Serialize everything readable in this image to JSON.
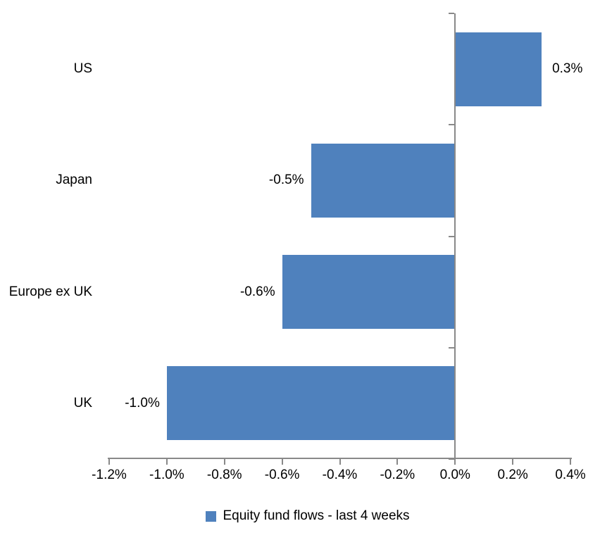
{
  "chart_data": {
    "type": "bar",
    "orientation": "horizontal",
    "categories": [
      "US",
      "Japan",
      "Europe ex UK",
      "UK"
    ],
    "values": [
      0.3,
      -0.5,
      -0.6,
      -1.0
    ],
    "data_labels": [
      "0.3%",
      "-0.5%",
      "-0.6%",
      "-1.0%"
    ],
    "title": "",
    "xlabel": "",
    "ylabel": "",
    "xlim": [
      -1.2,
      0.4
    ],
    "x_tick_step": 0.2,
    "x_tick_labels": [
      "-1.2%",
      "-1.0%",
      "-0.8%",
      "-0.6%",
      "-0.4%",
      "-0.2%",
      "0.0%",
      "0.2%",
      "0.4%"
    ],
    "grid": false,
    "legend_position": "bottom",
    "series_name": "Equity fund flows - last 4 weeks",
    "bar_color": "#4F81BD",
    "axis_color": "#898989",
    "text_color": "#000000"
  },
  "legend": {
    "label": "Equity fund flows - last 4 weeks",
    "swatch_color": "#4F81BD"
  }
}
